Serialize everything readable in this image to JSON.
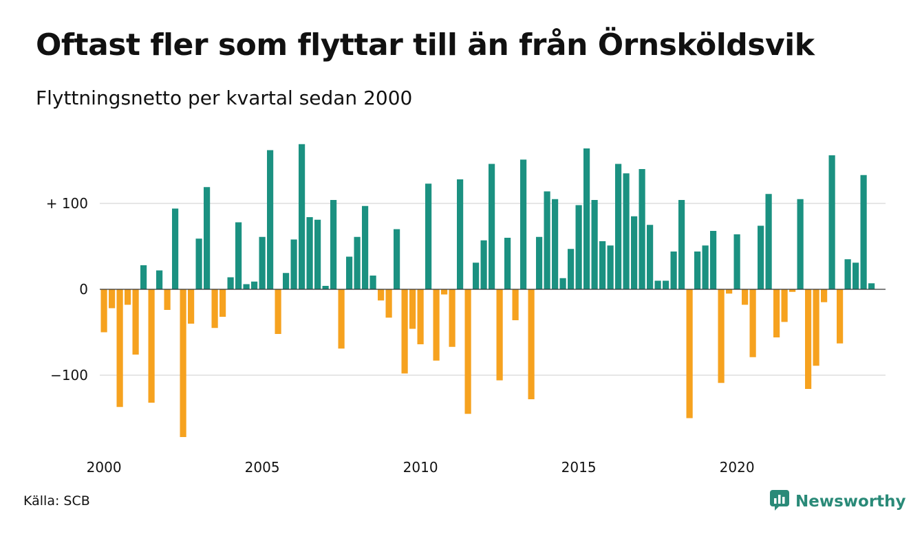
{
  "title": "Oftast fler som flyttar till än från Örnsköldsvik",
  "subtitle": "Flyttningsnetto per kvartal sedan 2000",
  "source": "Källa: SCB",
  "brand": {
    "name": "Newsworthy",
    "icon": "newsworthy-chat-bar-icon"
  },
  "colors": {
    "positive": "#1b9181",
    "negative": "#f6a21f",
    "grid": "#dddddd",
    "brand": "#2a8a78"
  },
  "chart_data": {
    "type": "bar",
    "title": "Oftast fler som flyttar till än från Örnsköldsvik",
    "subtitle": "Flyttningsnetto per kvartal sedan 2000",
    "xlabel": "",
    "ylabel": "",
    "x_start_year": 2000,
    "periods_per_year": 4,
    "x_ticks": [
      {
        "value": 2000,
        "label": "2000"
      },
      {
        "value": 2005,
        "label": "2005"
      },
      {
        "value": 2010,
        "label": "2010"
      },
      {
        "value": 2015,
        "label": "2015"
      },
      {
        "value": 2020,
        "label": "2020"
      }
    ],
    "y_ticks": [
      {
        "value": 100,
        "label": "+ 100"
      },
      {
        "value": 0,
        "label": "0"
      },
      {
        "value": -100,
        "label": "−100"
      }
    ],
    "ylim": [
      -180,
      180
    ],
    "grid": true,
    "legend": "none",
    "values": [
      -50,
      -22,
      -137,
      -18,
      -76,
      28,
      -132,
      22,
      -24,
      94,
      -172,
      -40,
      59,
      119,
      -45,
      -32,
      14,
      78,
      6,
      9,
      61,
      162,
      -52,
      19,
      58,
      169,
      84,
      81,
      4,
      104,
      -69,
      38,
      61,
      97,
      16,
      -13,
      -33,
      70,
      -98,
      -46,
      -64,
      123,
      -83,
      -6,
      -67,
      128,
      -145,
      31,
      57,
      146,
      -106,
      60,
      -36,
      151,
      -128,
      61,
      114,
      105,
      13,
      47,
      98,
      164,
      104,
      56,
      51,
      146,
      135,
      85,
      140,
      75,
      10,
      10,
      44,
      104,
      -150,
      44,
      51,
      68,
      -109,
      -5,
      64,
      -18,
      -79,
      74,
      111,
      -56,
      -38,
      -3,
      105,
      -116,
      -89,
      -15,
      156,
      -63,
      35,
      31,
      133,
      7
    ]
  }
}
